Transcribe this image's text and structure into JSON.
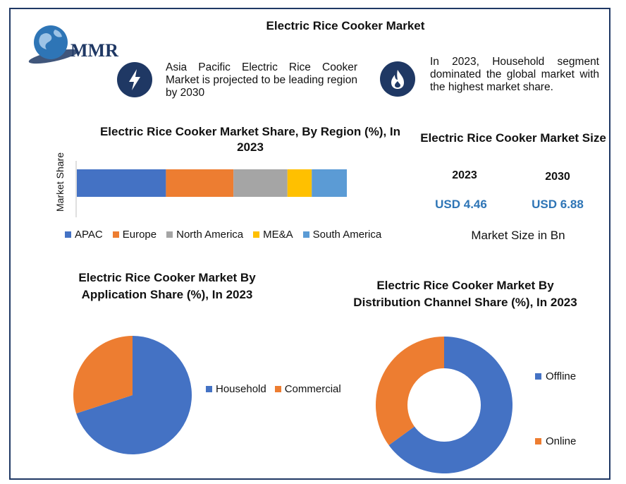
{
  "header": {
    "title": "Electric Rice Cooker Market",
    "logo_text": "MMR"
  },
  "highlights": [
    {
      "icon": "lightning-bolt-icon",
      "text": "Asia Pacific Electric Rice Cooker Market is projected to be leading region by 2030"
    },
    {
      "icon": "flame-icon",
      "text": "In 2023, Household segment dominated the global market with the highest market share."
    }
  ],
  "market_size": {
    "title": "Electric Rice Cooker Market Size",
    "year_a": "2023",
    "value_a": "USD 4.46",
    "year_b": "2030",
    "value_b": "USD 6.88",
    "unit_note": "Market Size in Bn"
  },
  "colors": {
    "apac": "#4472c4",
    "europe": "#ed7d31",
    "north_america": "#a5a5a5",
    "mea": "#ffc000",
    "south_america": "#5b9bd5",
    "navy": "#1f3864",
    "accent_text": "#2e75b6"
  },
  "chart_data": [
    {
      "type": "bar",
      "orientation": "horizontal-stacked",
      "title": "Electric Rice Cooker Market Share, By Region (%), In 2023",
      "ylabel": "Market Share",
      "xlabel": "",
      "legend_position": "bottom",
      "series": [
        {
          "name": "APAC",
          "values": [
            33
          ],
          "color": "#4472c4"
        },
        {
          "name": "Europe",
          "values": [
            25
          ],
          "color": "#ed7d31"
        },
        {
          "name": "North America",
          "values": [
            20
          ],
          "color": "#a5a5a5"
        },
        {
          "name": "ME&A",
          "values": [
            9
          ],
          "color": "#ffc000"
        },
        {
          "name": "South America",
          "values": [
            13
          ],
          "color": "#5b9bd5"
        }
      ]
    },
    {
      "type": "pie",
      "title": "Electric Rice Cooker Market By Application Share (%), In 2023",
      "legend_position": "right",
      "slices": [
        {
          "name": "Household",
          "value": 70,
          "color": "#4472c4"
        },
        {
          "name": "Commercial",
          "value": 30,
          "color": "#ed7d31"
        }
      ]
    },
    {
      "type": "pie",
      "variant": "donut",
      "title": "Electric Rice Cooker Market By Distribution Channel Share (%), In 2023",
      "legend_position": "right",
      "slices": [
        {
          "name": "Offline",
          "value": 65,
          "color": "#4472c4"
        },
        {
          "name": "Online",
          "value": 35,
          "color": "#ed7d31"
        }
      ]
    }
  ]
}
